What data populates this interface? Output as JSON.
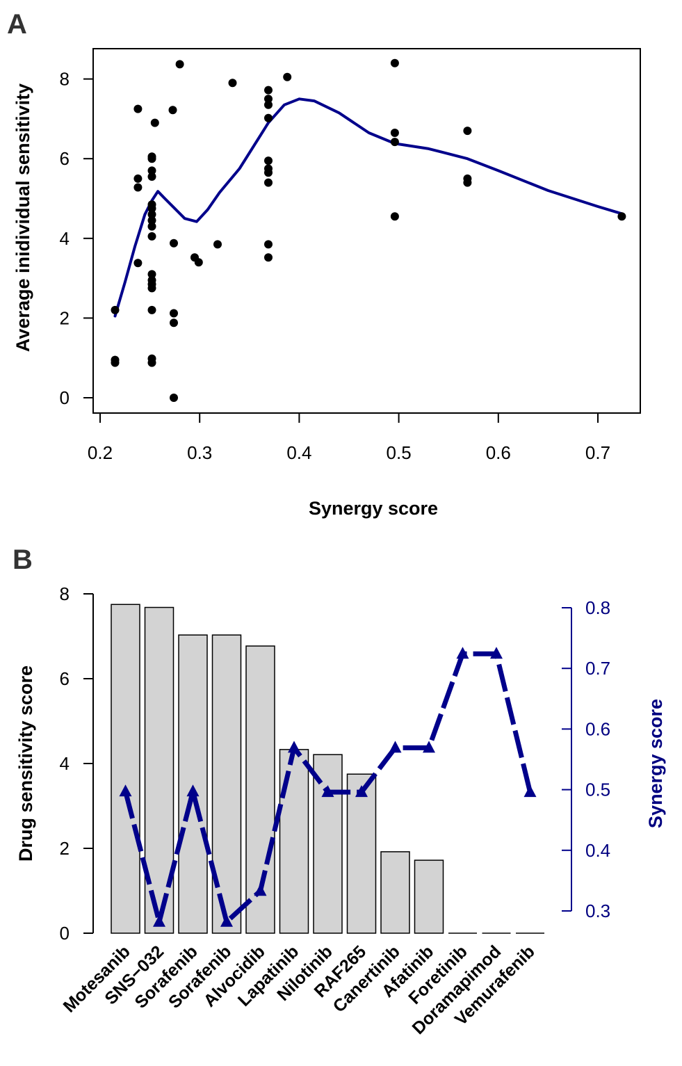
{
  "chart_data": [
    {
      "panel": "A",
      "type": "scatter",
      "xlabel": "Synergy score",
      "ylabel": "Average inidividual sensitivity",
      "xlim": [
        0.2,
        0.75
      ],
      "ylim": [
        0,
        8.5
      ],
      "xticks": [
        "0.2",
        "0.3",
        "0.4",
        "0.5",
        "0.6",
        "0.7"
      ],
      "yticks": [
        "0",
        "2",
        "4",
        "6",
        "8"
      ],
      "grid": false,
      "points": [
        {
          "x": 0.215,
          "y": 2.2
        },
        {
          "x": 0.215,
          "y": 0.95
        },
        {
          "x": 0.215,
          "y": 0.88
        },
        {
          "x": 0.238,
          "y": 7.25
        },
        {
          "x": 0.238,
          "y": 5.5
        },
        {
          "x": 0.238,
          "y": 5.28
        },
        {
          "x": 0.238,
          "y": 3.38
        },
        {
          "x": 0.252,
          "y": 6.05
        },
        {
          "x": 0.252,
          "y": 6.0
        },
        {
          "x": 0.252,
          "y": 5.7
        },
        {
          "x": 0.252,
          "y": 5.55
        },
        {
          "x": 0.252,
          "y": 4.85
        },
        {
          "x": 0.252,
          "y": 4.75
        },
        {
          "x": 0.252,
          "y": 4.6
        },
        {
          "x": 0.252,
          "y": 4.45
        },
        {
          "x": 0.252,
          "y": 4.3
        },
        {
          "x": 0.252,
          "y": 4.05
        },
        {
          "x": 0.252,
          "y": 3.1
        },
        {
          "x": 0.252,
          "y": 2.95
        },
        {
          "x": 0.252,
          "y": 2.85
        },
        {
          "x": 0.252,
          "y": 2.75
        },
        {
          "x": 0.252,
          "y": 2.2
        },
        {
          "x": 0.252,
          "y": 0.98
        },
        {
          "x": 0.252,
          "y": 0.88
        },
        {
          "x": 0.255,
          "y": 6.9
        },
        {
          "x": 0.273,
          "y": 7.22
        },
        {
          "x": 0.274,
          "y": 3.88
        },
        {
          "x": 0.274,
          "y": 2.12
        },
        {
          "x": 0.274,
          "y": 1.88
        },
        {
          "x": 0.274,
          "y": 0.0
        },
        {
          "x": 0.28,
          "y": 8.37
        },
        {
          "x": 0.295,
          "y": 3.52
        },
        {
          "x": 0.299,
          "y": 3.4
        },
        {
          "x": 0.318,
          "y": 3.85
        },
        {
          "x": 0.333,
          "y": 7.9
        },
        {
          "x": 0.369,
          "y": 7.72
        },
        {
          "x": 0.369,
          "y": 7.5
        },
        {
          "x": 0.369,
          "y": 7.35
        },
        {
          "x": 0.369,
          "y": 7.02
        },
        {
          "x": 0.369,
          "y": 5.95
        },
        {
          "x": 0.369,
          "y": 5.75
        },
        {
          "x": 0.369,
          "y": 5.65
        },
        {
          "x": 0.369,
          "y": 5.4
        },
        {
          "x": 0.369,
          "y": 3.85
        },
        {
          "x": 0.369,
          "y": 3.52
        },
        {
          "x": 0.388,
          "y": 8.05
        },
        {
          "x": 0.496,
          "y": 8.4
        },
        {
          "x": 0.496,
          "y": 6.65
        },
        {
          "x": 0.496,
          "y": 6.42
        },
        {
          "x": 0.496,
          "y": 4.55
        },
        {
          "x": 0.569,
          "y": 6.7
        },
        {
          "x": 0.569,
          "y": 5.5
        },
        {
          "x": 0.569,
          "y": 5.4
        },
        {
          "x": 0.724,
          "y": 4.55
        }
      ],
      "smooth_line": {
        "color": "#00008b",
        "points": [
          {
            "x": 0.215,
            "y": 2.05
          },
          {
            "x": 0.225,
            "y": 2.9
          },
          {
            "x": 0.235,
            "y": 3.8
          },
          {
            "x": 0.245,
            "y": 4.6
          },
          {
            "x": 0.252,
            "y": 4.95
          },
          {
            "x": 0.258,
            "y": 5.18
          },
          {
            "x": 0.265,
            "y": 5.0
          },
          {
            "x": 0.275,
            "y": 4.75
          },
          {
            "x": 0.285,
            "y": 4.5
          },
          {
            "x": 0.297,
            "y": 4.42
          },
          {
            "x": 0.308,
            "y": 4.72
          },
          {
            "x": 0.32,
            "y": 5.15
          },
          {
            "x": 0.34,
            "y": 5.75
          },
          {
            "x": 0.369,
            "y": 6.9
          },
          {
            "x": 0.385,
            "y": 7.35
          },
          {
            "x": 0.4,
            "y": 7.5
          },
          {
            "x": 0.415,
            "y": 7.45
          },
          {
            "x": 0.44,
            "y": 7.15
          },
          {
            "x": 0.47,
            "y": 6.65
          },
          {
            "x": 0.496,
            "y": 6.38
          },
          {
            "x": 0.53,
            "y": 6.25
          },
          {
            "x": 0.569,
            "y": 6.0
          },
          {
            "x": 0.6,
            "y": 5.7
          },
          {
            "x": 0.65,
            "y": 5.2
          },
          {
            "x": 0.7,
            "y": 4.8
          },
          {
            "x": 0.724,
            "y": 4.62
          }
        ]
      }
    },
    {
      "panel": "B",
      "type": "bar",
      "ylabel": "Drug sensitivity score",
      "y2label": "Synergy score",
      "ylim": [
        0,
        8
      ],
      "y2lim": [
        0.3,
        0.8
      ],
      "yticks": [
        "0",
        "2",
        "4",
        "6",
        "8"
      ],
      "y2ticks": [
        "0.3",
        "0.4",
        "0.5",
        "0.6",
        "0.7",
        "0.8"
      ],
      "categories": [
        "Motesanib",
        "SNS−032",
        "Sorafenib",
        "Sorafenib",
        "Alvocidib",
        "Lapatinib",
        "Nilotinib",
        "RAF265",
        "Canertinib",
        "Afatinib",
        "Foretinib",
        "Doramapimod",
        "Vemurafenib"
      ],
      "bar_values": [
        7.75,
        7.68,
        7.03,
        7.03,
        6.77,
        4.33,
        4.21,
        3.75,
        1.92,
        1.72,
        0,
        0,
        0
      ],
      "bar_color": "#d3d3d3",
      "synergy_values": [
        0.497,
        0.282,
        0.497,
        0.282,
        0.333,
        0.569,
        0.496,
        0.496,
        0.569,
        0.569,
        0.724,
        0.724,
        0.496
      ],
      "line_color": "#00008b",
      "grid": false
    }
  ],
  "panel_labels": [
    "A",
    "B"
  ]
}
